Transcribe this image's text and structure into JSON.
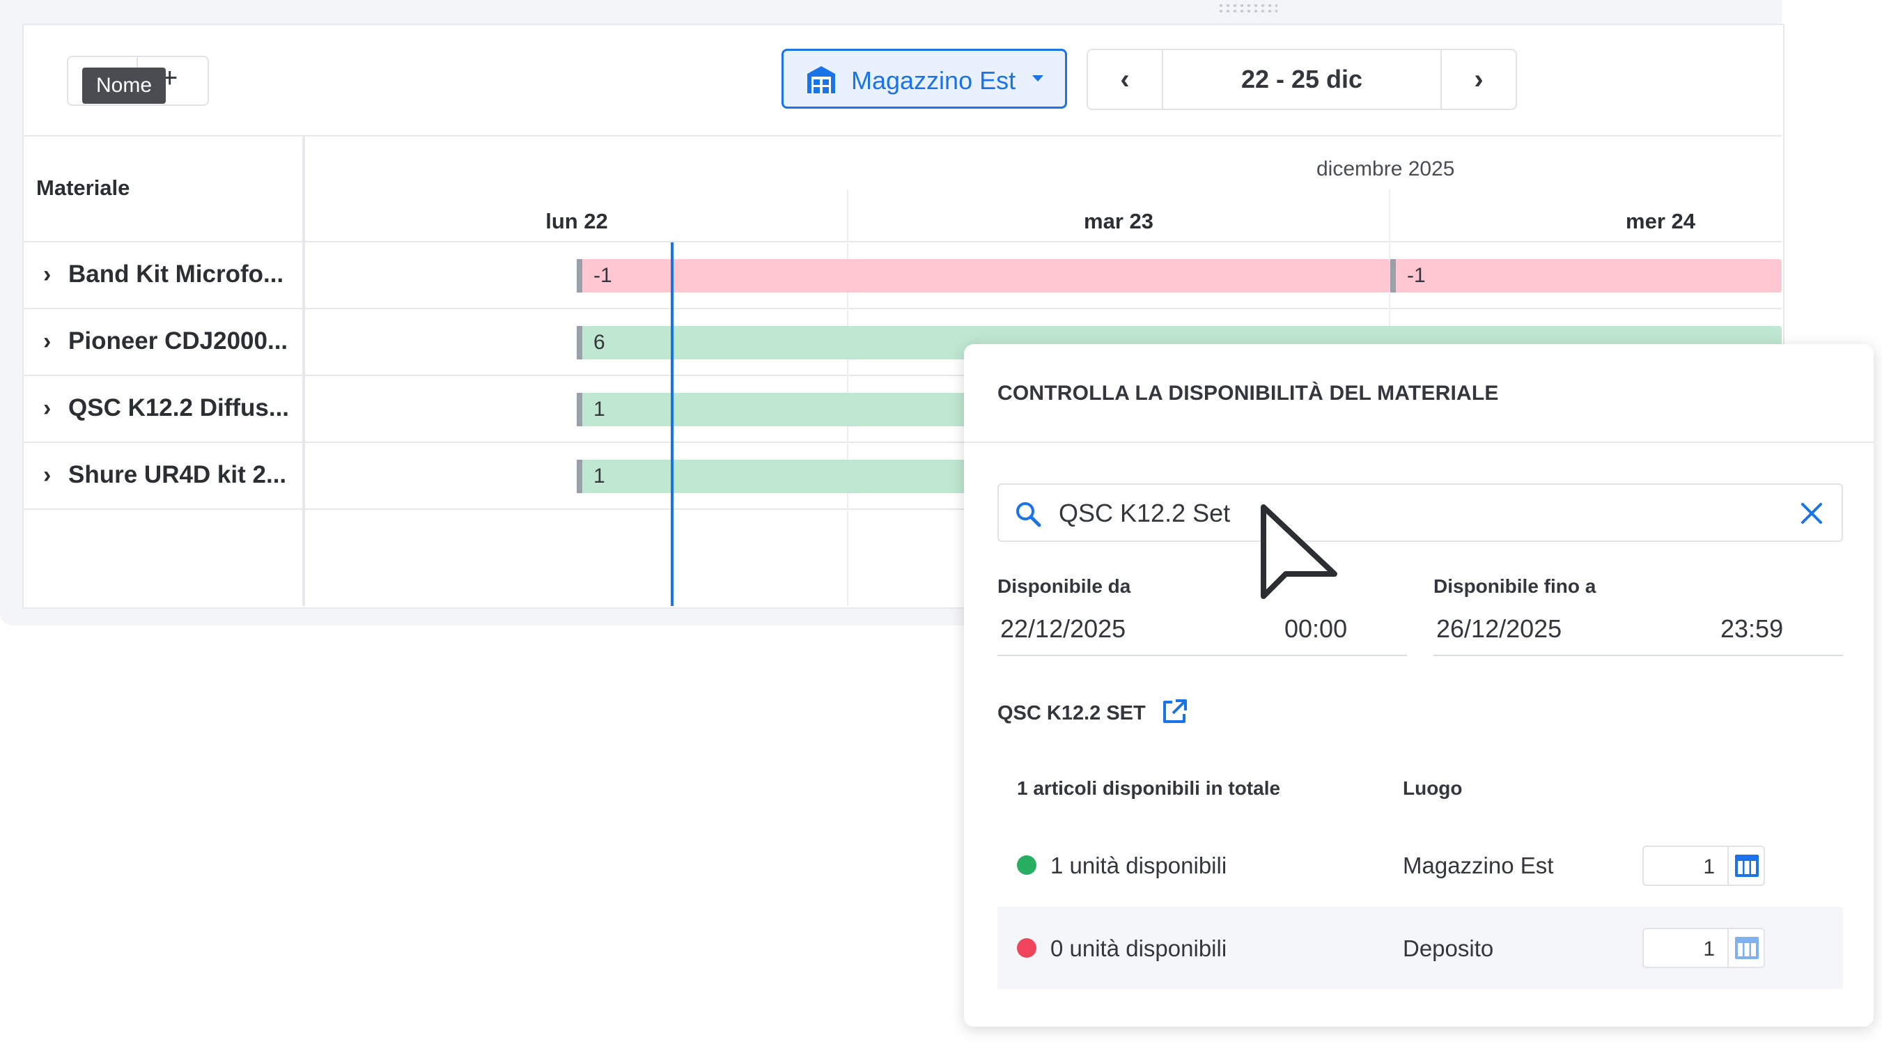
{
  "toolbar": {
    "tooltip": "Nome",
    "add_icon": "plus-icon",
    "location": {
      "label": "Magazzino Est",
      "icon": "warehouse-icon",
      "accent": "#1a73e8"
    },
    "date_range": "22 - 25 dic"
  },
  "planner": {
    "column_header": "Materiale",
    "month": "dicembre 2025",
    "days": [
      "lun 22",
      "mar 23",
      "mer 24"
    ],
    "rows": [
      {
        "label": "Band Kit Microfo...",
        "bars": [
          {
            "value": "-1",
            "status": "red"
          },
          {
            "value": "-1",
            "status": "red"
          }
        ]
      },
      {
        "label": "Pioneer CDJ2000...",
        "bars": [
          {
            "value": "6",
            "status": "green"
          }
        ]
      },
      {
        "label": "QSC K12.2 Diffus...",
        "bars": [
          {
            "value": "1",
            "status": "green"
          }
        ]
      },
      {
        "label": "Shure UR4D kit 2...",
        "bars": [
          {
            "value": "1",
            "status": "green"
          }
        ]
      }
    ],
    "colors": {
      "red": "#fec7d1",
      "green": "#bfe7d1",
      "today": "#1a73e8"
    }
  },
  "panel": {
    "title": "CONTROLLA LA DISPONIBILITÀ DEL MATERIALE",
    "search": {
      "value": "QSC K12.2 Set"
    },
    "from": {
      "label": "Disponibile da",
      "date": "22/12/2025",
      "time": "00:00"
    },
    "to": {
      "label": "Disponibile fino a",
      "date": "26/12/2025",
      "time": "23:59"
    },
    "product": "QSC K12.2 SET",
    "table": {
      "header_total": "1 articoli disponibili in totale",
      "header_location": "Luogo",
      "rows": [
        {
          "status": "green",
          "text": "1 unità disponibili",
          "location": "Magazzino Est",
          "qty": "1"
        },
        {
          "status": "red",
          "text": "0 unità disponibili",
          "location": "Deposito",
          "qty": "1"
        }
      ]
    },
    "colors": {
      "green": "#27ae60",
      "red": "#f0435c"
    }
  }
}
